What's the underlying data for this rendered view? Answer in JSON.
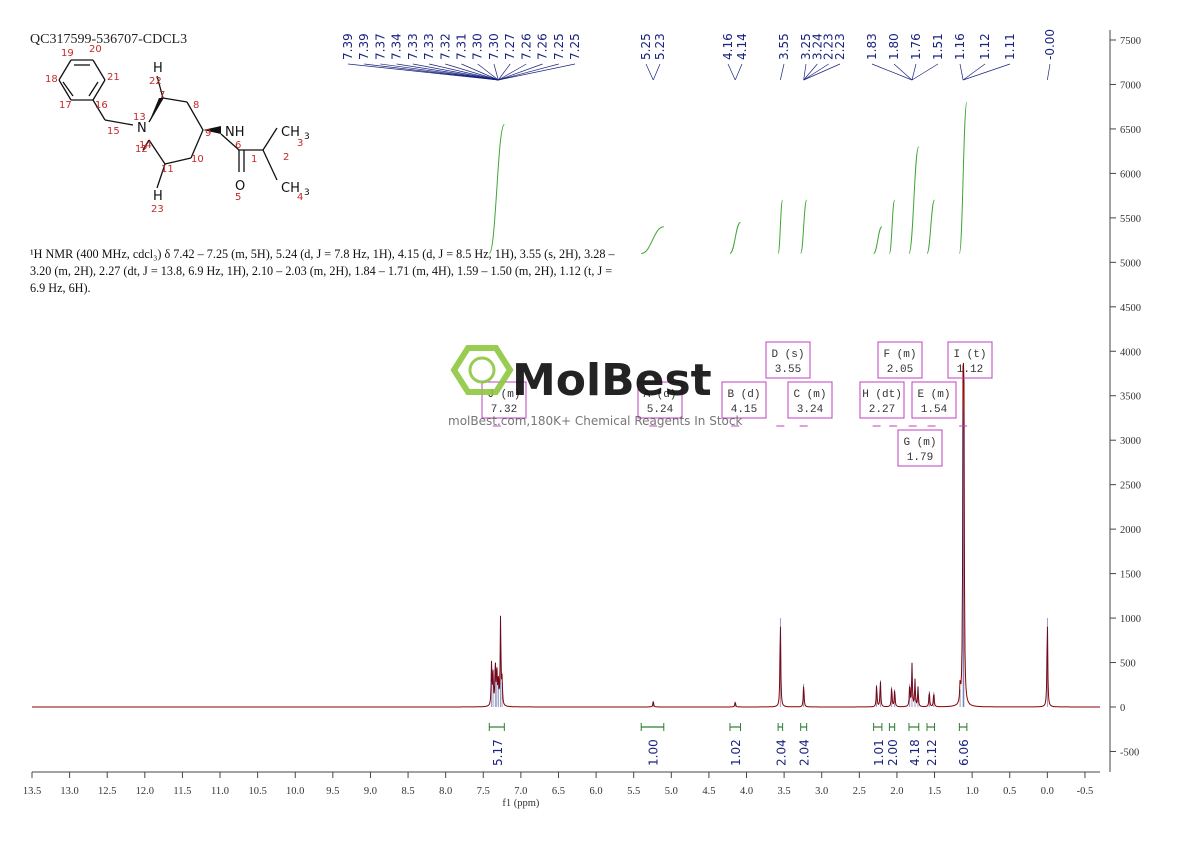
{
  "sample_title": "QC317599-536707-CDCL3",
  "nmr_text": "¹H NMR (400 MHz, cdcl₃) δ 7.42 – 7.25 (m, 5H), 5.24 (d, J = 7.8 Hz, 1H), 4.15 (d, J = 8.5 Hz, 1H), 3.55 (s, 2H), 3.28 – 3.20 (m, 2H), 2.27 (dt, J = 13.8, 6.9 Hz, 1H), 2.10 – 2.03 (m, 2H), 1.84 – 1.71 (m, 4H), 1.59 – 1.50 (m, 2H), 1.12 (t, J = 6.9 Hz, 6H).",
  "watermark": {
    "brand": "MolBest",
    "tagline": "molBest.com,180K+ Chemical Reagents In Stock",
    "color": "#8dc63f"
  },
  "structure": {
    "atoms": [
      "19",
      "20",
      "21",
      "18",
      "17",
      "16",
      "15",
      "N",
      "13",
      "14",
      "12",
      "22",
      "7",
      "8",
      "9",
      "10",
      "11",
      "23",
      "6",
      "1",
      "2",
      "3",
      "4",
      "5"
    ],
    "labels": {
      "N": "N",
      "NH": "NH",
      "H_top": "H",
      "H_bottom": "H",
      "CH3_top": "CH",
      "CH3_bot": "CH",
      "sub3": "3",
      "O": "O"
    }
  },
  "chart_data": {
    "type": "line",
    "title": "",
    "xlabel": "f1 (ppm)",
    "ylabel": "",
    "xlim": [
      13.5,
      -0.7
    ],
    "ylim": [
      -700,
      7600
    ],
    "x_ticks": [
      "13.5",
      "13.0",
      "12.5",
      "12.0",
      "11.5",
      "11.0",
      "10.5",
      "10.0",
      "9.5",
      "9.0",
      "8.5",
      "8.0",
      "7.5",
      "7.0",
      "6.5",
      "6.0",
      "5.5",
      "5.0",
      "4.5",
      "4.0",
      "3.5",
      "3.0",
      "2.5",
      "2.0",
      "1.5",
      "1.0",
      "0.5",
      "0.0",
      "-0.5"
    ],
    "y_ticks": [
      "7500",
      "7000",
      "6500",
      "6000",
      "5500",
      "5000",
      "4500",
      "4000",
      "3500",
      "3000",
      "2500",
      "2000",
      "1500",
      "1000",
      "500",
      "0",
      "-500"
    ],
    "peaks": [
      {
        "ppm": 7.39,
        "height": 480
      },
      {
        "ppm": 7.37,
        "height": 350
      },
      {
        "ppm": 7.34,
        "height": 500
      },
      {
        "ppm": 7.32,
        "height": 420
      },
      {
        "ppm": 7.3,
        "height": 300
      },
      {
        "ppm": 7.27,
        "height": 1000
      },
      {
        "ppm": 7.25,
        "height": 280
      },
      {
        "ppm": 5.24,
        "height": 70
      },
      {
        "ppm": 4.15,
        "height": 60
      },
      {
        "ppm": 3.55,
        "height": 1000
      },
      {
        "ppm": 3.24,
        "height": 260
      },
      {
        "ppm": 2.27,
        "height": 250
      },
      {
        "ppm": 2.22,
        "height": 300
      },
      {
        "ppm": 2.07,
        "height": 230
      },
      {
        "ppm": 2.03,
        "height": 200
      },
      {
        "ppm": 1.83,
        "height": 260
      },
      {
        "ppm": 1.8,
        "height": 480
      },
      {
        "ppm": 1.76,
        "height": 300
      },
      {
        "ppm": 1.72,
        "height": 220
      },
      {
        "ppm": 1.57,
        "height": 180
      },
      {
        "ppm": 1.51,
        "height": 170
      },
      {
        "ppm": 1.16,
        "height": 200
      },
      {
        "ppm": 1.12,
        "height": 3350
      },
      {
        "ppm": 1.11,
        "height": 3200
      },
      {
        "ppm": 0.0,
        "height": 1000
      }
    ],
    "peak_labels": [
      "7.39",
      "7.39",
      "7.37",
      "7.34",
      "7.33",
      "7.33",
      "7.32",
      "7.31",
      "7.30",
      "7.30",
      "7.27",
      "7.26",
      "7.26",
      "7.25",
      "7.25",
      "5.25",
      "5.23",
      "4.16",
      "4.14",
      "3.55",
      "3.25",
      "3.24",
      "2.23",
      "2.23",
      "1.83",
      "1.80",
      "1.76",
      "1.51",
      "1.16",
      "1.12",
      "1.11",
      "-0.00"
    ],
    "multiplets": [
      {
        "letter": "J",
        "type": "m",
        "shift": "7.32",
        "ppm": 7.32
      },
      {
        "letter": "A",
        "type": "d",
        "shift": "5.24",
        "ppm": 5.24
      },
      {
        "letter": "B",
        "type": "d",
        "shift": "4.15",
        "ppm": 4.15
      },
      {
        "letter": "D",
        "type": "s",
        "shift": "3.55",
        "ppm": 3.55
      },
      {
        "letter": "C",
        "type": "m",
        "shift": "3.24",
        "ppm": 3.24
      },
      {
        "letter": "H",
        "type": "dt",
        "shift": "2.27",
        "ppm": 2.27
      },
      {
        "letter": "F",
        "type": "m",
        "shift": "2.05",
        "ppm": 2.05
      },
      {
        "letter": "G",
        "type": "m",
        "shift": "1.79",
        "ppm": 1.79
      },
      {
        "letter": "E",
        "type": "m",
        "shift": "1.54",
        "ppm": 1.54
      },
      {
        "letter": "I",
        "type": "t",
        "shift": "1.12",
        "ppm": 1.12
      }
    ],
    "integrals": [
      {
        "value": "5.17",
        "from": 7.42,
        "to": 7.22
      },
      {
        "value": "1.00",
        "from": 5.4,
        "to": 5.1
      },
      {
        "value": "1.02",
        "from": 4.22,
        "to": 4.08
      },
      {
        "value": "2.04",
        "from": 3.58,
        "to": 3.52
      },
      {
        "value": "2.04",
        "from": 3.28,
        "to": 3.2
      },
      {
        "value": "1.01",
        "from": 2.31,
        "to": 2.2
      },
      {
        "value": "2.00",
        "from": 2.1,
        "to": 2.03
      },
      {
        "value": "4.18",
        "from": 1.84,
        "to": 1.71
      },
      {
        "value": "2.12",
        "from": 1.6,
        "to": 1.5
      },
      {
        "value": "6.06",
        "from": 1.17,
        "to": 1.07
      }
    ],
    "colors": {
      "spectrum": "#8b0000",
      "peak_marker": "#1a237e",
      "integral": "#2e7d32",
      "multiplet_box": "#c040c0",
      "axis": "#444444"
    }
  }
}
